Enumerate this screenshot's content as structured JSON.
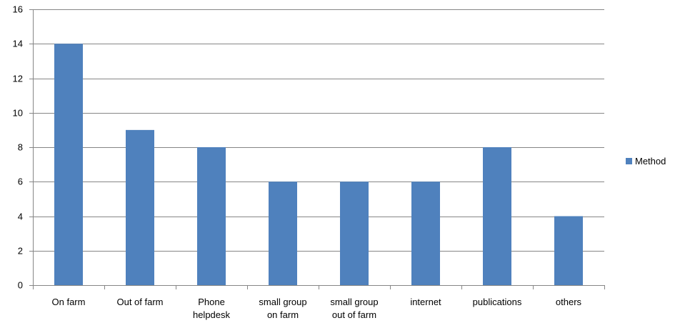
{
  "chart_data": {
    "type": "bar",
    "categories": [
      [
        "On farm"
      ],
      [
        "Out of farm"
      ],
      [
        "Phone",
        "helpdesk"
      ],
      [
        "small group",
        "on farm"
      ],
      [
        "small group",
        "out of farm"
      ],
      [
        "internet"
      ],
      [
        "publications"
      ],
      [
        "others"
      ]
    ],
    "series": [
      {
        "name": "Method",
        "values": [
          14,
          9,
          8,
          6,
          6,
          6,
          8,
          4
        ]
      }
    ],
    "title": "",
    "xlabel": "",
    "ylabel": "",
    "ylim": [
      0,
      16
    ],
    "yticks": [
      0,
      2,
      4,
      6,
      8,
      10,
      12,
      14,
      16
    ],
    "grid": true,
    "legend": "right",
    "bar_color": "#4f81bd",
    "grid_color": "#868686",
    "axis_color": "#868686"
  }
}
